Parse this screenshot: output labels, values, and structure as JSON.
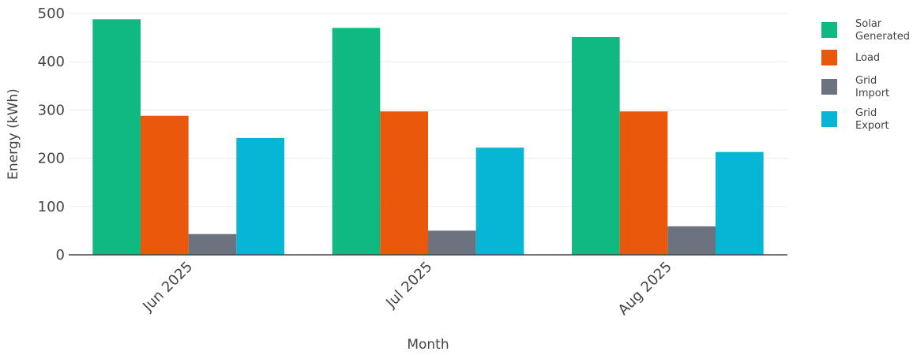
{
  "chart_data": {
    "type": "bar",
    "categories": [
      "Jun 2025",
      "Jul 2025",
      "Aug 2025"
    ],
    "series": [
      {
        "name": "Solar Generated",
        "legend_lines": [
          "Solar",
          "Generated"
        ],
        "color": "#10b981",
        "values": [
          488,
          470,
          451
        ]
      },
      {
        "name": "Load",
        "legend_lines": [
          "Load"
        ],
        "color": "#ea580c",
        "values": [
          288,
          297,
          297
        ]
      },
      {
        "name": "Grid Import",
        "legend_lines": [
          "Grid",
          "Import"
        ],
        "color": "#6b7280",
        "values": [
          43,
          50,
          59
        ]
      },
      {
        "name": "Grid Export",
        "legend_lines": [
          "Grid",
          "Export"
        ],
        "color": "#06b6d4",
        "values": [
          242,
          222,
          213
        ]
      }
    ],
    "xlabel": "Month",
    "ylabel": "Energy (kWh)",
    "ylim": [
      0,
      500
    ],
    "yticks": [
      0,
      100,
      200,
      300,
      400,
      500
    ],
    "grid": true,
    "legend_position": "top-right",
    "xtick_rotation": "-45 degrees"
  }
}
